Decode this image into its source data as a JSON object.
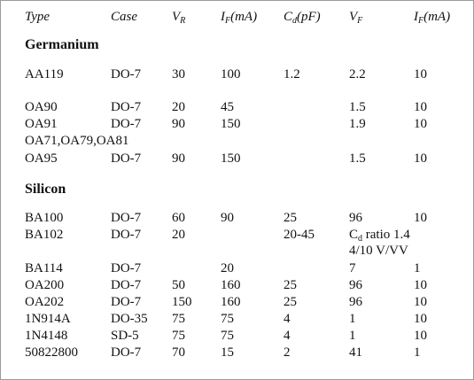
{
  "header": [
    {
      "text": "Type"
    },
    {
      "text": "Case"
    },
    {
      "text": "V",
      "sub": "R"
    },
    {
      "text": "I",
      "sub": "F",
      "suffix": "(mA)"
    },
    {
      "text": "C",
      "sub": "d",
      "suffix": "(pF)"
    },
    {
      "text": "V",
      "sub": "F"
    },
    {
      "text": "I",
      "sub": "F",
      "suffix": "(mA)"
    }
  ],
  "sections": [
    {
      "title": "Germanium",
      "rows": [
        [
          "AA119",
          "DO-7",
          "30",
          "100",
          "1.2",
          "2.2",
          "10"
        ],
        [
          "OA90",
          "DO-7",
          "20",
          "45",
          null,
          "1.5",
          "10"
        ],
        [
          "OA91",
          "DO-7",
          "90",
          "150",
          null,
          "1.9",
          "10"
        ],
        [
          "OA71,OA79,OA81",
          null,
          null,
          null,
          null,
          null,
          null
        ],
        [
          "OA95",
          "DO-7",
          "90",
          "150",
          null,
          "1.5",
          "10"
        ]
      ]
    },
    {
      "title": "Silicon",
      "rows": [
        [
          "BA100",
          "DO-7",
          "60",
          "90",
          "25",
          "96",
          "10"
        ],
        [
          "BA102",
          "DO-7",
          "20",
          null,
          "20-45",
          {
            "lines": [
              {
                "text": "C",
                "sub": "d",
                "suffix": " ratio 1.4"
              },
              "4/10 V/VV"
            ]
          },
          null
        ],
        [
          "BA114",
          "DO-7",
          null,
          "20",
          null,
          "7",
          "1"
        ],
        [
          "OA200",
          "DO-7",
          "50",
          "160",
          "25",
          "96",
          "10"
        ],
        [
          "OA202",
          "DO-7",
          "150",
          "160",
          "25",
          "96",
          "10"
        ],
        [
          "1N914A",
          "DO-35",
          "75",
          "75",
          "4",
          "1",
          "10"
        ],
        [
          "1N4148",
          "SD-5",
          "75",
          "75",
          "4",
          "1",
          "10"
        ],
        [
          "50822800",
          "DO-7",
          "70",
          "15",
          "2",
          "41",
          "1"
        ]
      ]
    }
  ]
}
